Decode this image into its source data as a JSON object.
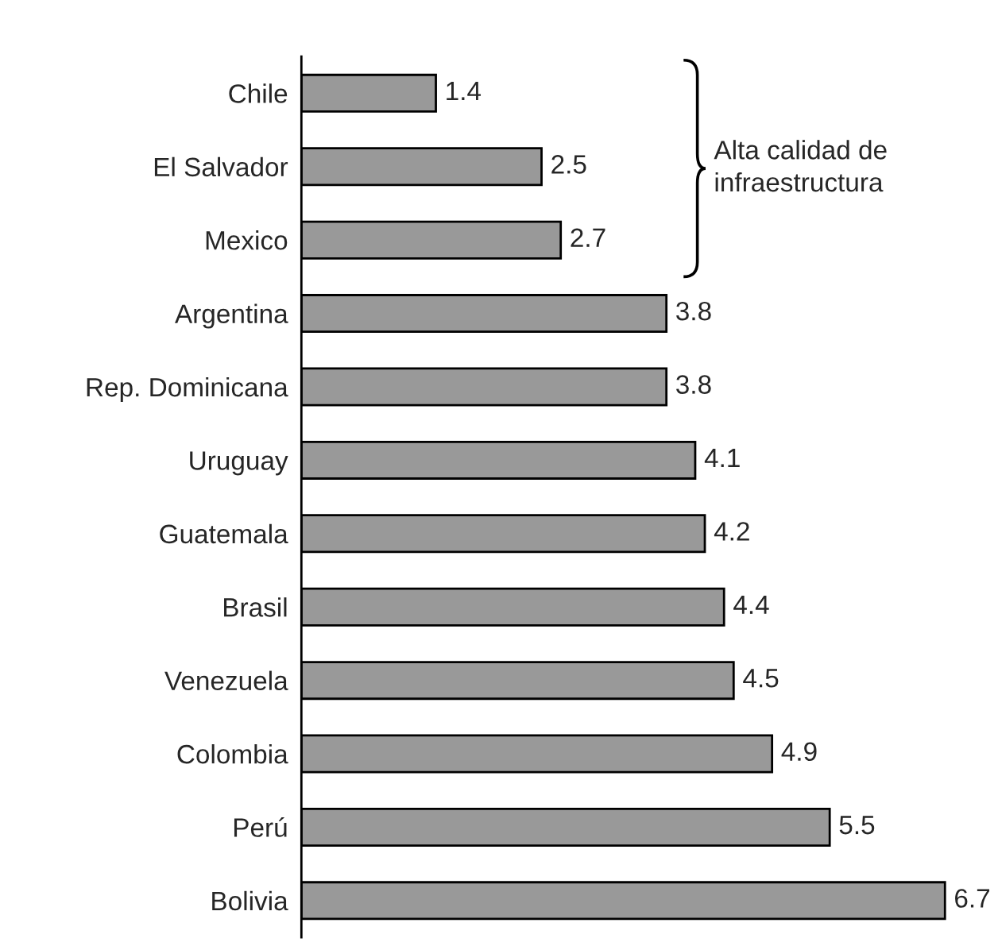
{
  "chart_data": {
    "type": "bar",
    "orientation": "horizontal",
    "categories": [
      "Chile",
      "El Salvador",
      "Mexico",
      "Argentina",
      "Rep. Dominicana",
      "Uruguay",
      "Guatemala",
      "Brasil",
      "Venezuela",
      "Colombia",
      "Perú",
      "Bolivia"
    ],
    "values": [
      1.4,
      2.5,
      2.7,
      3.8,
      3.8,
      4.1,
      4.2,
      4.4,
      4.5,
      4.9,
      5.5,
      6.7
    ],
    "color": "#999999",
    "data_labels": true,
    "grid": false,
    "legend": false,
    "annotations": [
      "Alta calidad de\ninfraestructura"
    ]
  }
}
